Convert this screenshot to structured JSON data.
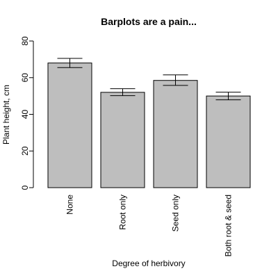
{
  "chart_data": {
    "type": "bar",
    "title": "Barplots are a pain...",
    "xlabel": "Degree of herbivory",
    "ylabel": "Plant height, cm",
    "categories": [
      "None",
      "Root only",
      "Seed only",
      "Both root & seed"
    ],
    "values": [
      68,
      52,
      58.5,
      50
    ],
    "error_lower": [
      65.5,
      50.2,
      55.8,
      47.9
    ],
    "error_upper": [
      70.5,
      54.0,
      61.5,
      52.1
    ],
    "ylim": [
      0,
      80
    ],
    "yticks": [
      0,
      20,
      40,
      60,
      80
    ],
    "bar_color": "#bebebe",
    "bar_border_color": "#000000",
    "grid": false,
    "legend": "none"
  }
}
